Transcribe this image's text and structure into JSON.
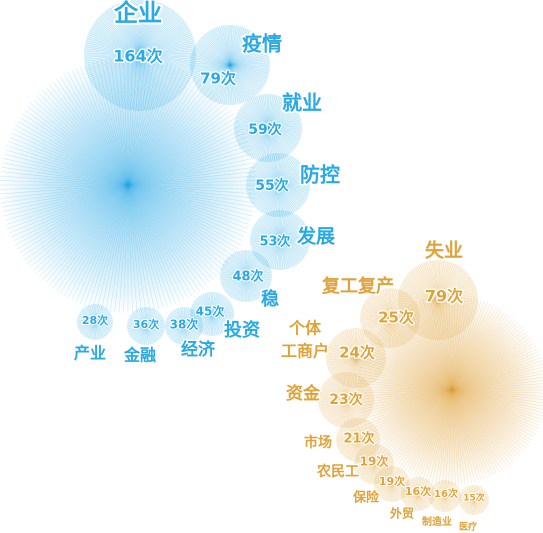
{
  "chart_data": {
    "type": "bubble",
    "unit": "次",
    "series": [
      {
        "color": "#29a9e6",
        "items": [
          {
            "word": "企业",
            "count": "164次"
          },
          {
            "word": "疫情",
            "count": "79次"
          },
          {
            "word": "就业",
            "count": "59次"
          },
          {
            "word": "防控",
            "count": "55次"
          },
          {
            "word": "发展",
            "count": "53次"
          },
          {
            "word": "稳",
            "count": "48次"
          },
          {
            "word": "投资",
            "count": "45次"
          },
          {
            "word": "经济",
            "count": "38次"
          },
          {
            "word": "金融",
            "count": "36次"
          },
          {
            "word": "产业",
            "count": "28次"
          }
        ]
      },
      {
        "color": "#e0a23a",
        "items": [
          {
            "word": "失业",
            "count": "79次"
          },
          {
            "word": "复工复产",
            "count": "25次"
          },
          {
            "word": "个体工商户",
            "count": "24次"
          },
          {
            "word": "资金",
            "count": "23次"
          },
          {
            "word": "市场",
            "count": "21次"
          },
          {
            "word": "农民工",
            "count": "19次"
          },
          {
            "word": "保险",
            "count": "19次"
          },
          {
            "word": "外贸",
            "count": "16次"
          },
          {
            "word": "制造业",
            "count": "16次"
          },
          {
            "word": "医疗",
            "count": "15次"
          }
        ]
      }
    ]
  }
}
